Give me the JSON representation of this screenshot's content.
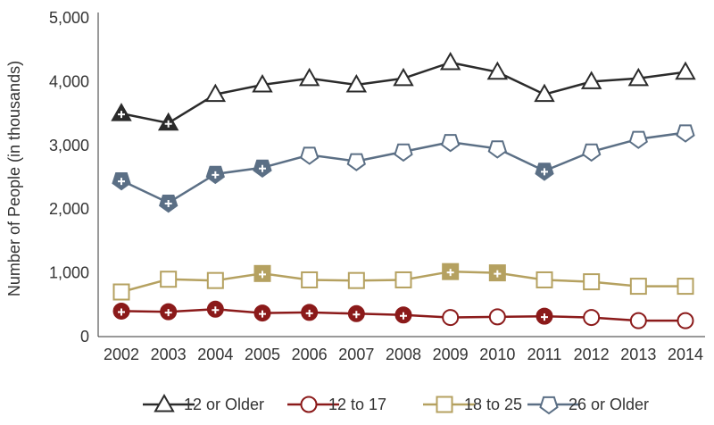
{
  "chart_data": {
    "type": "line",
    "title": "",
    "xlabel": "",
    "ylabel": "Number of People (in thousands)",
    "ylim": [
      0,
      5000
    ],
    "yticks": [
      0,
      1000,
      2000,
      3000,
      4000,
      5000
    ],
    "ytick_labels": [
      "0",
      "1,000",
      "2,000",
      "3,000",
      "4,000",
      "5,000"
    ],
    "grid": false,
    "legend_position": "bottom",
    "x": [
      "2002",
      "2003",
      "2004",
      "2005",
      "2006",
      "2007",
      "2008",
      "2009",
      "2010",
      "2011",
      "2012",
      "2013",
      "2014"
    ],
    "series": [
      {
        "name": "12 or Older",
        "color": "#2b2b2b",
        "marker": "triangle",
        "values": [
          3500,
          3350,
          3800,
          3950,
          4050,
          3950,
          4050,
          4300,
          4150,
          3800,
          4000,
          4050,
          4150
        ],
        "filled": [
          true,
          true,
          false,
          false,
          false,
          false,
          false,
          false,
          false,
          false,
          false,
          false,
          false
        ]
      },
      {
        "name": "12 to 17",
        "color": "#8b1a1a",
        "marker": "circle",
        "values": [
          400,
          390,
          430,
          370,
          380,
          360,
          340,
          300,
          310,
          320,
          300,
          250,
          250
        ],
        "filled": [
          true,
          true,
          true,
          true,
          true,
          true,
          true,
          false,
          false,
          true,
          false,
          false,
          false
        ]
      },
      {
        "name": "18 to 25",
        "color": "#b5a160",
        "marker": "square",
        "values": [
          700,
          900,
          880,
          990,
          890,
          880,
          890,
          1020,
          1000,
          890,
          860,
          790,
          790
        ],
        "filled": [
          false,
          false,
          false,
          true,
          false,
          false,
          false,
          true,
          true,
          false,
          false,
          false,
          false
        ]
      },
      {
        "name": "26 or Older",
        "color": "#5b6f85",
        "marker": "pentagon",
        "values": [
          2450,
          2100,
          2550,
          2650,
          2850,
          2750,
          2900,
          3050,
          2950,
          2600,
          2900,
          3100,
          3200
        ],
        "filled": [
          true,
          true,
          true,
          true,
          false,
          false,
          false,
          false,
          false,
          true,
          false,
          false,
          false
        ]
      }
    ]
  }
}
